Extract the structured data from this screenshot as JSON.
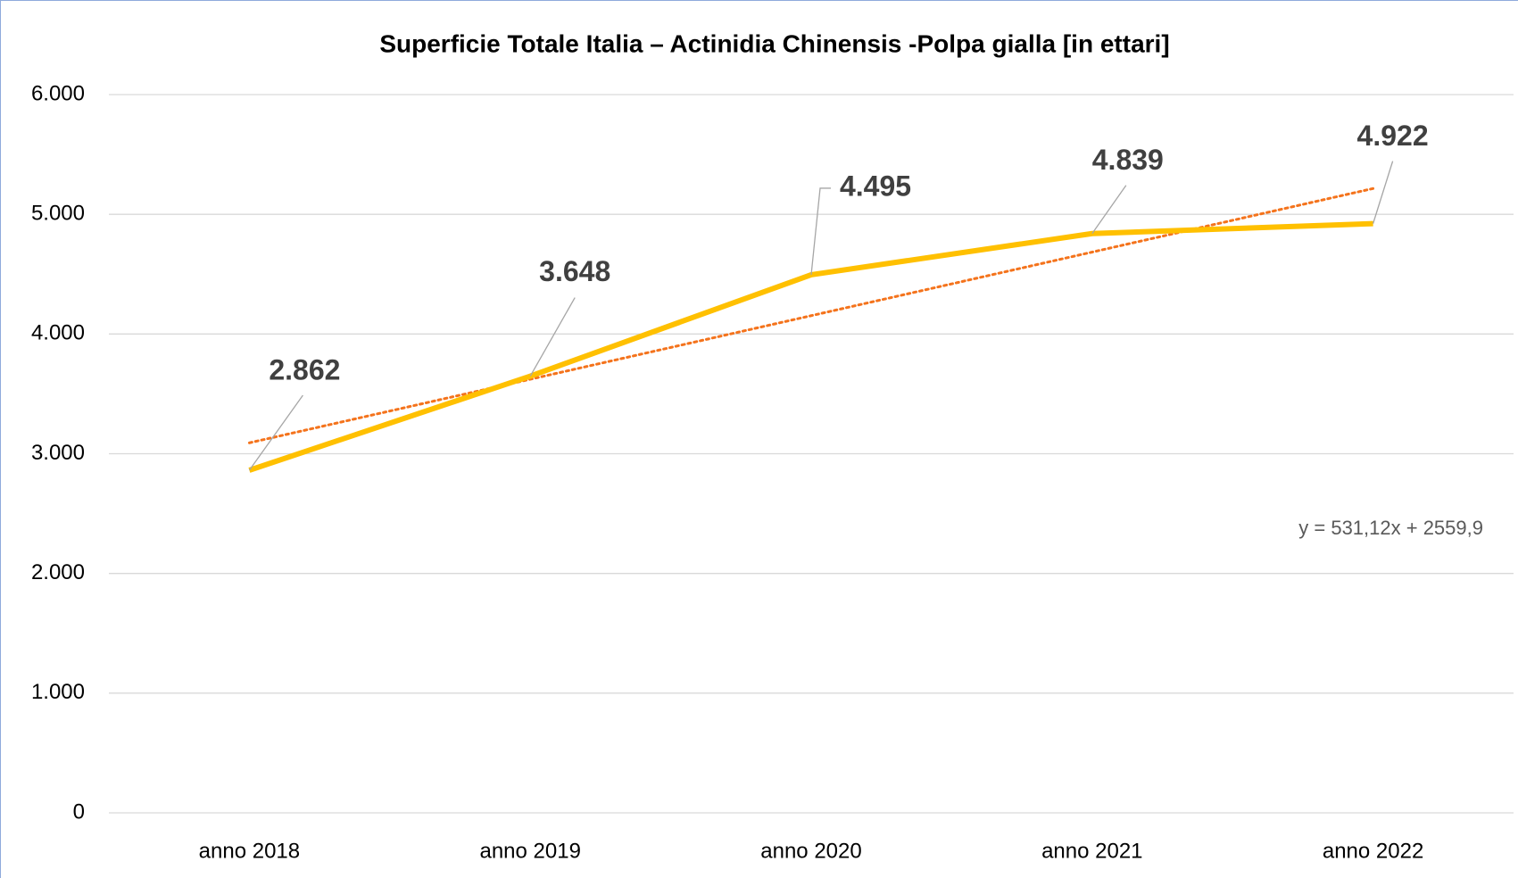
{
  "chart_data": {
    "type": "line",
    "title": "Superficie Totale Italia – Actinidia Chinensis -Polpa gialla [in ettari]",
    "categories": [
      "anno 2018",
      "anno 2019",
      "anno 2020",
      "anno 2021",
      "anno 2022"
    ],
    "series": [
      {
        "name": "Superficie",
        "color": "#ffc000",
        "values": [
          2862,
          3648,
          4495,
          4839,
          4922
        ],
        "value_labels": [
          "2.862",
          "3.648",
          "4.495",
          "4.839",
          "4.922"
        ]
      }
    ],
    "trendline": {
      "type": "linear",
      "color": "#f4731c",
      "equation": "y = 531,12x + 2559,9"
    },
    "ylim": [
      0,
      6000
    ],
    "yticks": [
      0,
      {
        "value": 1000,
        "label": "1.000"
      },
      {
        "value": 2000,
        "label": "2.000"
      },
      {
        "value": 3000,
        "label": "3.000"
      },
      {
        "value": 4000,
        "label": "4.000"
      },
      {
        "value": 5000,
        "label": "5.000"
      },
      {
        "value": 6000,
        "label": "6.000"
      }
    ],
    "grid": true
  }
}
